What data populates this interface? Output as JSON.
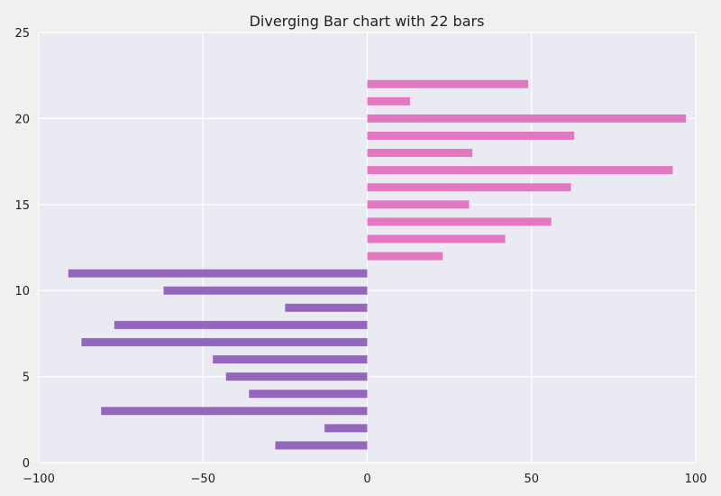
{
  "chart_data": {
    "type": "bar",
    "orientation": "horizontal",
    "title": "Diverging Bar chart with 22 bars",
    "xlabel": "",
    "ylabel": "",
    "xlim": [
      -100,
      100
    ],
    "ylim": [
      0,
      25
    ],
    "x_ticks": [
      -100,
      -50,
      0,
      50,
      100
    ],
    "x_tick_labels": [
      "−100",
      "−50",
      "0",
      "50",
      "100"
    ],
    "y_ticks": [
      0,
      5,
      10,
      15,
      20,
      25
    ],
    "y_tick_labels": [
      "0",
      "5",
      "10",
      "15",
      "20",
      "25"
    ],
    "grid": true,
    "legend": "none",
    "colors": {
      "negative": "#9467bd",
      "positive": "#e377c2",
      "plot_background": "#eaeaf2",
      "figure_background": "#f0f0f0",
      "grid": "#ffffff"
    },
    "y": [
      1,
      2,
      3,
      4,
      5,
      6,
      7,
      8,
      9,
      10,
      11,
      12,
      13,
      14,
      15,
      16,
      17,
      18,
      19,
      20,
      21,
      22
    ],
    "values": [
      -28,
      -13,
      -81,
      -36,
      -43,
      -47,
      -87,
      -77,
      -25,
      -62,
      -91,
      23,
      42,
      56,
      31,
      62,
      93,
      32,
      63,
      97,
      13,
      49
    ]
  }
}
